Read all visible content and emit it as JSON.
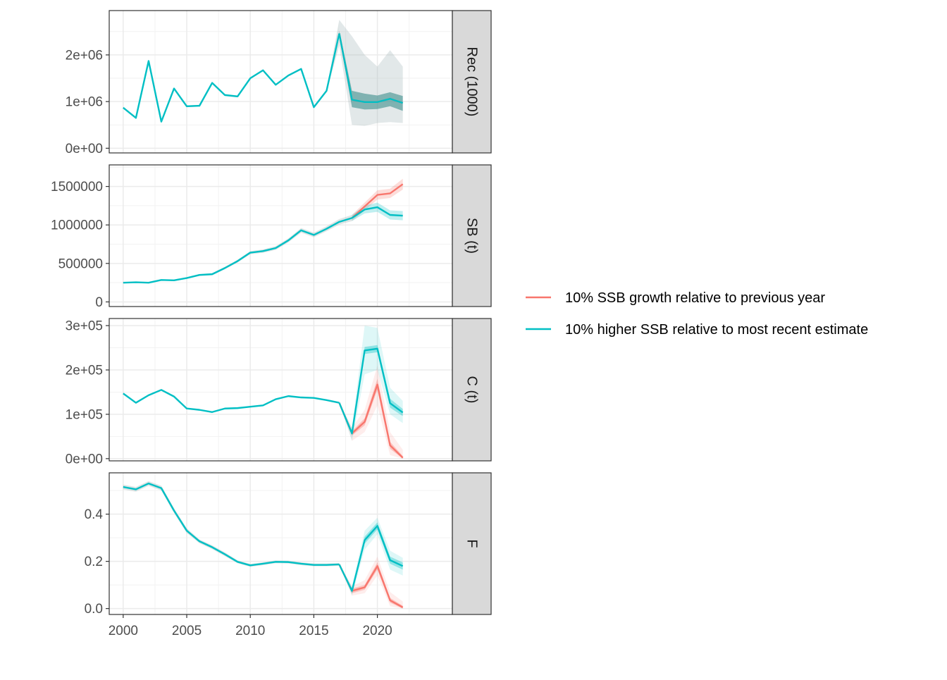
{
  "chart_data": {
    "type": "line",
    "x_axis": {
      "range": [
        1998.9,
        2025.9
      ],
      "ticks": [
        2000,
        2005,
        2010,
        2015,
        2020
      ],
      "tick_labels": [
        "2000",
        "2005",
        "2010",
        "2015",
        "2020"
      ],
      "xlabel": ""
    },
    "series": [
      {
        "name": "10% SSB growth relative to previous year",
        "color": "#F8766D"
      },
      {
        "name": "10% higher SSB relative to most recent estimate",
        "color": "#00BFC4"
      }
    ],
    "legend": {
      "position": "right",
      "show_title": false
    },
    "grid": true,
    "panels": [
      {
        "strip": "Rec (1000)",
        "ylim": [
          -100000,
          2950000
        ],
        "yticks": [
          0,
          1000000,
          2000000
        ],
        "ytick_labels": [
          "0e+00",
          "1e+06",
          "2e+06"
        ],
        "history": {
          "years": [
            2000,
            2001,
            2002,
            2003,
            2004,
            2005,
            2006,
            2007,
            2008,
            2009,
            2010,
            2011,
            2012,
            2013,
            2014,
            2015,
            2016,
            2017
          ],
          "values": [
            870000,
            650000,
            1870000,
            570000,
            1280000,
            900000,
            910000,
            1400000,
            1140000,
            1110000,
            1500000,
            1670000,
            1360000,
            1560000,
            1700000,
            880000,
            1230000,
            2460000
          ],
          "band_lo": [
            850000,
            630000,
            1850000,
            550000,
            1260000,
            880000,
            890000,
            1380000,
            1120000,
            1090000,
            1480000,
            1650000,
            1340000,
            1540000,
            1680000,
            860000,
            1210000,
            2200000
          ],
          "band_hi": [
            890000,
            670000,
            1890000,
            590000,
            1300000,
            920000,
            930000,
            1420000,
            1160000,
            1130000,
            1520000,
            1690000,
            1380000,
            1580000,
            1720000,
            900000,
            1250000,
            2750000
          ]
        },
        "projection": {
          "years": [
            2017,
            2018,
            2019,
            2020,
            2021,
            2022
          ],
          "series_values": [
            [
              2460000,
              1040000,
              990000,
              990000,
              1060000,
              970000
            ],
            [
              2460000,
              1040000,
              990000,
              990000,
              1060000,
              970000
            ]
          ],
          "inner_lo": [
            2400000,
            880000,
            830000,
            840000,
            900000,
            800000
          ],
          "inner_hi": [
            2520000,
            1230000,
            1170000,
            1130000,
            1200000,
            1120000
          ],
          "outer_lo": [
            2200000,
            500000,
            480000,
            540000,
            560000,
            540000
          ],
          "outer_hi": [
            2750000,
            2400000,
            2000000,
            1750000,
            2100000,
            1750000
          ]
        }
      },
      {
        "strip": "SB (t)",
        "ylim": [
          -60000,
          1780000
        ],
        "yticks": [
          0,
          500000,
          1000000,
          1500000
        ],
        "ytick_labels": [
          "0",
          "500000",
          "1000000",
          "1500000"
        ],
        "history": {
          "years": [
            2000,
            2001,
            2002,
            2003,
            2004,
            2005,
            2006,
            2007,
            2008,
            2009,
            2010,
            2011,
            2012,
            2013,
            2014,
            2015,
            2016,
            2017,
            2018
          ],
          "values": [
            250000,
            255000,
            250000,
            285000,
            280000,
            310000,
            350000,
            360000,
            440000,
            530000,
            640000,
            660000,
            700000,
            800000,
            930000,
            870000,
            950000,
            1040000,
            1090000
          ],
          "band_lo": [
            245000,
            250000,
            245000,
            278000,
            272000,
            300000,
            338000,
            346000,
            424000,
            512000,
            620000,
            638000,
            676000,
            774000,
            900000,
            840000,
            918000,
            1004000,
            1050000
          ],
          "band_hi": [
            255000,
            260000,
            255000,
            292000,
            288000,
            320000,
            362000,
            374000,
            456000,
            548000,
            660000,
            682000,
            724000,
            826000,
            960000,
            900000,
            982000,
            1076000,
            1130000
          ]
        },
        "projection": {
          "years": [
            2018,
            2019,
            2020,
            2021,
            2022
          ],
          "series_values": [
            [
              1090000,
              1240000,
              1390000,
              1410000,
              1530000
            ],
            [
              1090000,
              1200000,
              1230000,
              1130000,
              1120000
            ]
          ],
          "band_lo": [
            [
              1050000,
              1190000,
              1330000,
              1350000,
              1460000
            ],
            [
              1050000,
              1150000,
              1170000,
              1070000,
              1060000
            ]
          ],
          "band_hi": [
            [
              1130000,
              1290000,
              1450000,
              1470000,
              1600000
            ],
            [
              1130000,
              1250000,
              1290000,
              1190000,
              1180000
            ]
          ]
        }
      },
      {
        "strip": "C (t)",
        "ylim": [
          -5000,
          316000
        ],
        "yticks": [
          0,
          100000,
          200000,
          300000
        ],
        "ytick_labels": [
          "0e+00",
          "1e+05",
          "2e+05",
          "3e+05"
        ],
        "history": {
          "years": [
            2000,
            2001,
            2002,
            2003,
            2004,
            2005,
            2006,
            2007,
            2008,
            2009,
            2010,
            2011,
            2012,
            2013,
            2014,
            2015,
            2016,
            2017
          ],
          "values": [
            147000,
            126000,
            143000,
            155000,
            140000,
            113000,
            110000,
            105000,
            113000,
            114000,
            117000,
            120000,
            134000,
            141000,
            138000,
            137000,
            132000,
            126000
          ],
          "band_lo": [
            146000,
            125000,
            142000,
            154000,
            139000,
            112000,
            109000,
            104000,
            112000,
            113000,
            116000,
            119000,
            133000,
            140000,
            137000,
            136000,
            131000,
            125000
          ],
          "band_hi": [
            148000,
            127000,
            144000,
            156000,
            141000,
            114000,
            111000,
            106000,
            114000,
            115000,
            118000,
            121000,
            135000,
            142000,
            139000,
            138000,
            133000,
            127000
          ]
        },
        "projection": {
          "years": [
            2017,
            2018,
            2019,
            2020,
            2021,
            2022
          ],
          "series_values": [
            [
              126000,
              57000,
              83000,
              167000,
              30000,
              2000
            ],
            [
              126000,
              57000,
              244000,
              248000,
              125000,
              104000
            ]
          ],
          "inner_lo": [
            [
              126000,
              52000,
              75000,
              155000,
              22000,
              0
            ],
            [
              126000,
              52000,
              236000,
              240000,
              115000,
              96000
            ]
          ],
          "inner_hi": [
            [
              126000,
              62000,
              91000,
              180000,
              38000,
              6000
            ],
            [
              126000,
              62000,
              252000,
              256000,
              135000,
              112000
            ]
          ],
          "outer_lo": [
            [
              126000,
              40000,
              60000,
              120000,
              8000,
              0
            ],
            [
              126000,
              40000,
              190000,
              200000,
              100000,
              80000
            ]
          ],
          "outer_hi": [
            [
              126000,
              70000,
              110000,
              210000,
              60000,
              20000
            ],
            [
              126000,
              70000,
              300000,
              295000,
              160000,
              130000
            ]
          ]
        }
      },
      {
        "strip": "F",
        "ylim": [
          -0.025,
          0.575
        ],
        "yticks": [
          0.0,
          0.2,
          0.4
        ],
        "ytick_labels": [
          "0.0",
          "0.2",
          "0.4"
        ],
        "history": {
          "years": [
            2000,
            2001,
            2002,
            2003,
            2004,
            2005,
            2006,
            2007,
            2008,
            2009,
            2010,
            2011,
            2012,
            2013,
            2014,
            2015,
            2016,
            2017
          ],
          "values": [
            0.515,
            0.505,
            0.53,
            0.51,
            0.415,
            0.33,
            0.285,
            0.26,
            0.23,
            0.198,
            0.183,
            0.19,
            0.198,
            0.197,
            0.19,
            0.185,
            0.185,
            0.187
          ],
          "band_lo": [
            0.505,
            0.495,
            0.52,
            0.5,
            0.405,
            0.32,
            0.277,
            0.252,
            0.222,
            0.192,
            0.177,
            0.184,
            0.192,
            0.191,
            0.184,
            0.179,
            0.179,
            0.181
          ],
          "band_hi": [
            0.525,
            0.515,
            0.54,
            0.52,
            0.425,
            0.34,
            0.293,
            0.268,
            0.238,
            0.204,
            0.189,
            0.196,
            0.204,
            0.203,
            0.196,
            0.191,
            0.191,
            0.193
          ]
        },
        "projection": {
          "years": [
            2017,
            2018,
            2019,
            2020,
            2021,
            2022
          ],
          "series_values": [
            [
              0.187,
              0.075,
              0.09,
              0.18,
              0.035,
              0.005
            ],
            [
              0.187,
              0.075,
              0.29,
              0.35,
              0.205,
              0.18
            ]
          ],
          "inner_lo": [
            [
              0.187,
              0.065,
              0.08,
              0.165,
              0.025,
              0.0
            ],
            [
              0.187,
              0.065,
              0.275,
              0.335,
              0.19,
              0.165
            ]
          ],
          "inner_hi": [
            [
              0.187,
              0.085,
              0.1,
              0.195,
              0.045,
              0.012
            ],
            [
              0.187,
              0.085,
              0.305,
              0.365,
              0.22,
              0.195
            ]
          ],
          "outer_lo": [
            [
              0.187,
              0.055,
              0.065,
              0.14,
              0.01,
              0.0
            ],
            [
              0.187,
              0.055,
              0.25,
              0.315,
              0.165,
              0.14
            ]
          ],
          "outer_hi": [
            [
              0.187,
              0.095,
              0.12,
              0.22,
              0.07,
              0.03
            ],
            [
              0.187,
              0.095,
              0.33,
              0.385,
              0.245,
              0.215
            ]
          ]
        }
      }
    ]
  }
}
